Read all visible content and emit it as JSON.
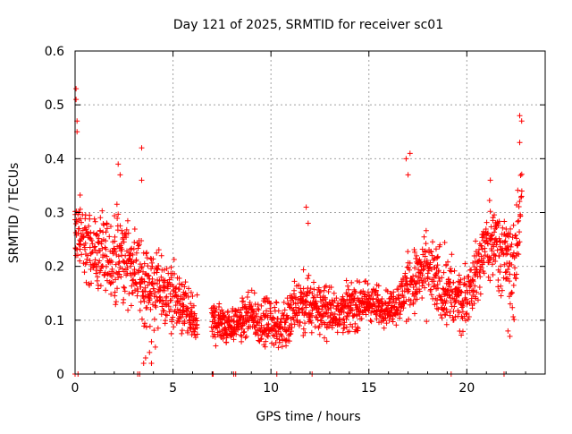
{
  "chart_data": {
    "type": "scatter",
    "title": "Day 121 of 2025, SRMTID for receiver sc01",
    "xlabel": "GPS time / hours",
    "ylabel": "SRMTID / TECUs",
    "xlim": [
      0,
      24
    ],
    "ylim": [
      0,
      0.6
    ],
    "xticks": [
      0,
      5,
      10,
      15,
      20
    ],
    "yticks": [
      0,
      0.1,
      0.2,
      0.3,
      0.4,
      0.5,
      0.6
    ],
    "xtick_labels": [
      "0",
      "5",
      "10",
      "15",
      "20"
    ],
    "ytick_labels": [
      "0",
      "0.1",
      "0.2",
      "0.3",
      "0.4",
      "0.5",
      "0.6"
    ],
    "grid": true,
    "marker": "+",
    "marker_color": "#ff0000",
    "series": [
      {
        "name": "SRMTID",
        "envelope_hours": [
          0.0,
          0.5,
          1.0,
          1.5,
          2.0,
          2.5,
          3.0,
          3.5,
          4.0,
          4.5,
          5.0,
          5.5,
          6.0,
          7.0,
          7.5,
          8.0,
          8.5,
          9.0,
          9.5,
          10.0,
          10.5,
          11.0,
          11.5,
          12.0,
          12.5,
          13.0,
          13.5,
          14.0,
          14.5,
          15.0,
          15.5,
          16.0,
          16.5,
          17.0,
          17.5,
          18.0,
          18.5,
          19.0,
          19.5,
          20.0,
          20.5,
          21.0,
          21.5,
          22.0,
          22.5,
          22.8
        ],
        "envelope_low": [
          0.17,
          0.15,
          0.14,
          0.12,
          0.1,
          0.11,
          0.12,
          0.07,
          0.06,
          0.05,
          0.07,
          0.05,
          0.04,
          0.04,
          0.05,
          0.05,
          0.05,
          0.05,
          0.04,
          0.04,
          0.03,
          0.03,
          0.05,
          0.05,
          0.06,
          0.06,
          0.06,
          0.07,
          0.07,
          0.08,
          0.08,
          0.08,
          0.08,
          0.09,
          0.09,
          0.1,
          0.08,
          0.06,
          0.05,
          0.08,
          0.11,
          0.15,
          0.16,
          0.12,
          0.06,
          0.3
        ],
        "envelope_high": [
          0.37,
          0.33,
          0.31,
          0.3,
          0.33,
          0.31,
          0.28,
          0.27,
          0.26,
          0.24,
          0.22,
          0.19,
          0.16,
          0.15,
          0.14,
          0.13,
          0.15,
          0.16,
          0.15,
          0.15,
          0.14,
          0.18,
          0.2,
          0.2,
          0.19,
          0.17,
          0.18,
          0.18,
          0.18,
          0.19,
          0.17,
          0.17,
          0.18,
          0.24,
          0.26,
          0.28,
          0.26,
          0.25,
          0.22,
          0.21,
          0.27,
          0.33,
          0.34,
          0.32,
          0.31,
          0.44
        ],
        "spikes": [
          {
            "x": 0.05,
            "y": 0.53
          },
          {
            "x": 0.05,
            "y": 0.51
          },
          {
            "x": 0.1,
            "y": 0.47
          },
          {
            "x": 0.1,
            "y": 0.45
          },
          {
            "x": 2.2,
            "y": 0.39
          },
          {
            "x": 2.3,
            "y": 0.37
          },
          {
            "x": 3.4,
            "y": 0.42
          },
          {
            "x": 3.4,
            "y": 0.36
          },
          {
            "x": 3.5,
            "y": 0.02
          },
          {
            "x": 3.6,
            "y": 0.03
          },
          {
            "x": 3.8,
            "y": 0.04
          },
          {
            "x": 3.9,
            "y": 0.06
          },
          {
            "x": 3.9,
            "y": 0.02
          },
          {
            "x": 4.1,
            "y": 0.05
          },
          {
            "x": 11.8,
            "y": 0.31
          },
          {
            "x": 11.9,
            "y": 0.28
          },
          {
            "x": 16.9,
            "y": 0.4
          },
          {
            "x": 17.1,
            "y": 0.41
          },
          {
            "x": 17.0,
            "y": 0.37
          },
          {
            "x": 21.2,
            "y": 0.36
          },
          {
            "x": 22.1,
            "y": 0.08
          },
          {
            "x": 22.2,
            "y": 0.07
          },
          {
            "x": 22.7,
            "y": 0.48
          },
          {
            "x": 22.8,
            "y": 0.47
          },
          {
            "x": 22.7,
            "y": 0.43
          }
        ],
        "zeros_hours": [
          0.0,
          0.15,
          3.2,
          3.3,
          7.0,
          7.05,
          8.1,
          8.2,
          10.3,
          12.1,
          19.2,
          21.9
        ]
      }
    ]
  }
}
